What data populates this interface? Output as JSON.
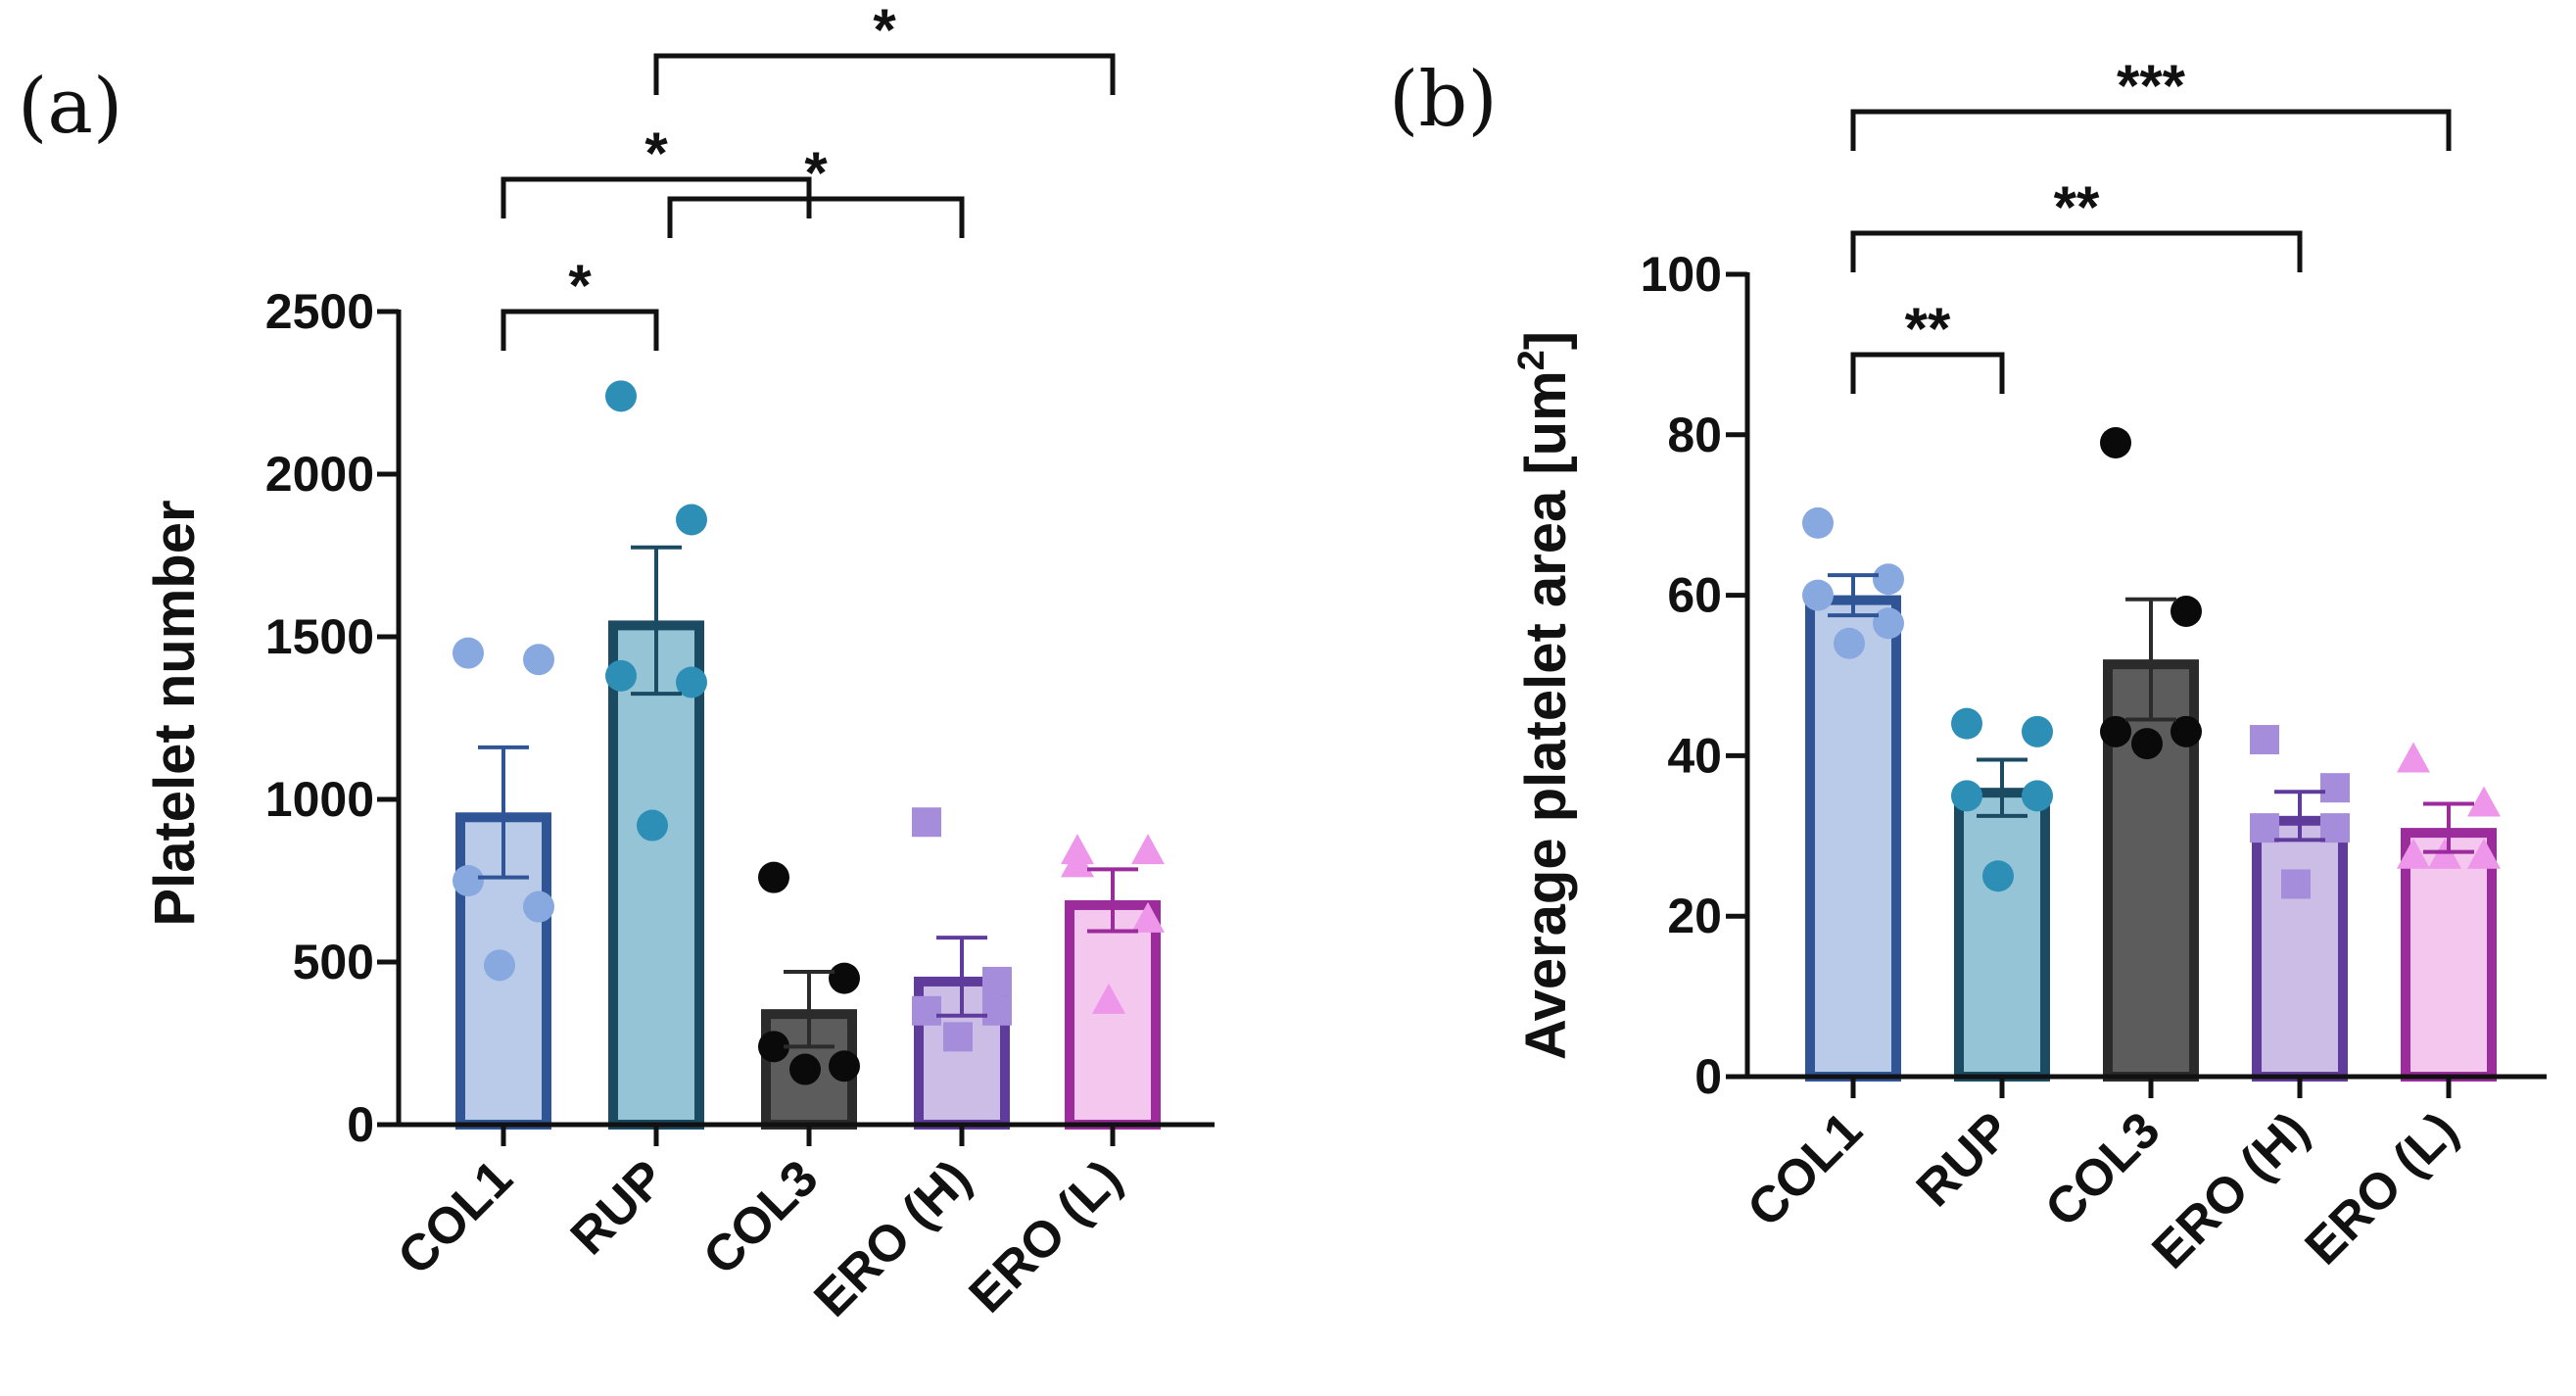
{
  "chart_data": [
    {
      "panel": "(a)",
      "type": "bar",
      "ylabel": "Platelet number",
      "xlabel": "",
      "ylim": [
        0,
        2500
      ],
      "yticks": [
        "0",
        "500",
        "1000",
        "1500",
        "2000",
        "2500"
      ],
      "categories": [
        "COL1",
        "RUP",
        "COL3",
        "ERO (H)",
        "ERO (L)"
      ],
      "values": [
        960,
        1550,
        355,
        455,
        690
      ],
      "sem": [
        200,
        225,
        115,
        120,
        95
      ],
      "points": [
        [
          1450,
          1430,
          750,
          670,
          490
        ],
        [
          2240,
          1860,
          1380,
          1360,
          920
        ],
        [
          760,
          450,
          240,
          180,
          170
        ],
        [
          930,
          440,
          350,
          350,
          270
        ],
        [
          840,
          840,
          800,
          630,
          380
        ]
      ],
      "significance": [
        {
          "from": 0,
          "to": 1,
          "label": "*"
        },
        {
          "from": 1,
          "to": 3,
          "label": "*"
        },
        {
          "from": 0,
          "to": 2,
          "label": "*"
        },
        {
          "from": 1,
          "to": 4,
          "label": "*"
        }
      ]
    },
    {
      "panel": "(b)",
      "type": "bar",
      "ylabel": "Average platelet area [um²]",
      "ylabel_main": "Average platelet area [um",
      "ylabel_sup": "2",
      "ylabel_end": "]",
      "xlabel": "",
      "ylim": [
        0,
        100
      ],
      "yticks": [
        "0",
        "20",
        "40",
        "60",
        "80",
        "100"
      ],
      "categories": [
        "COL1",
        "RUP",
        "COL3",
        "ERO (H)",
        "ERO (L)"
      ],
      "values": [
        60,
        36,
        52,
        32.5,
        31
      ],
      "sem": [
        2.5,
        3.5,
        7.5,
        3,
        3
      ],
      "points": [
        [
          69,
          62,
          60,
          56.5,
          54
        ],
        [
          44,
          43,
          35,
          35,
          25
        ],
        [
          79,
          58,
          43,
          43,
          41.5
        ],
        [
          42,
          36,
          31,
          31,
          24
        ],
        [
          39.5,
          34,
          27.5,
          27.5,
          27.5
        ]
      ],
      "significance": [
        {
          "from": 0,
          "to": 1,
          "label": "**"
        },
        {
          "from": 0,
          "to": 3,
          "label": "**"
        },
        {
          "from": 0,
          "to": 4,
          "label": "***"
        }
      ]
    }
  ],
  "styles": {
    "fills": [
      "#b9cbe8",
      "#94c4d6",
      "#5c5c5c",
      "#cbbde6",
      "#f3c7ee"
    ],
    "strokes": [
      "#2f5597",
      "#1b4a63",
      "#2b2b2b",
      "#5f3b9c",
      "#9c2b9c"
    ],
    "markers": [
      "#88a8e0",
      "#2e8fb6",
      "#0a0a0a",
      "#a68ddc",
      "#ee96ea"
    ],
    "marker_shapes": [
      "circle",
      "circle",
      "circle",
      "square",
      "triangle"
    ]
  }
}
